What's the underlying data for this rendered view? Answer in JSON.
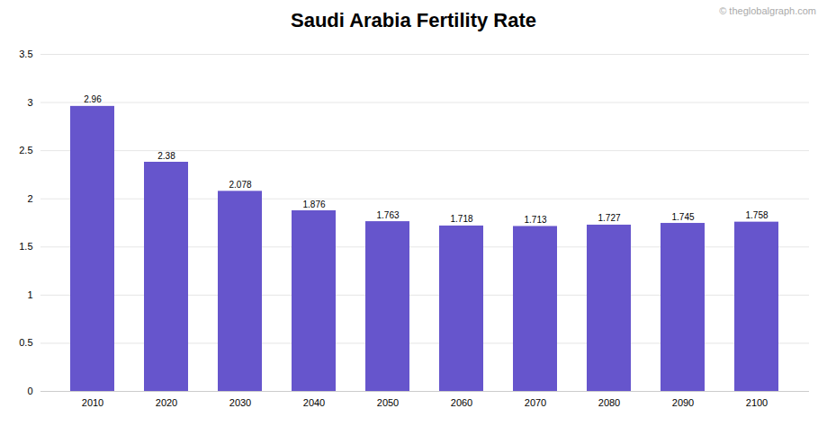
{
  "chart_data": {
    "type": "bar",
    "title": "Saudi Arabia Fertility Rate",
    "categories": [
      2010,
      2020,
      2030,
      2040,
      2050,
      2060,
      2070,
      2080,
      2090,
      2100
    ],
    "values": [
      2.96,
      2.38,
      2.078,
      1.876,
      1.763,
      1.718,
      1.713,
      1.727,
      1.745,
      1.758
    ],
    "color": "#6655cc",
    "ylim": [
      0,
      3.5
    ],
    "yticks": [
      0,
      0.5,
      1.0,
      1.5,
      2.0,
      2.5,
      3.0,
      3.5
    ],
    "grid": true,
    "data_labels": true,
    "annotations": [
      "© theglobalgraph.com"
    ]
  }
}
